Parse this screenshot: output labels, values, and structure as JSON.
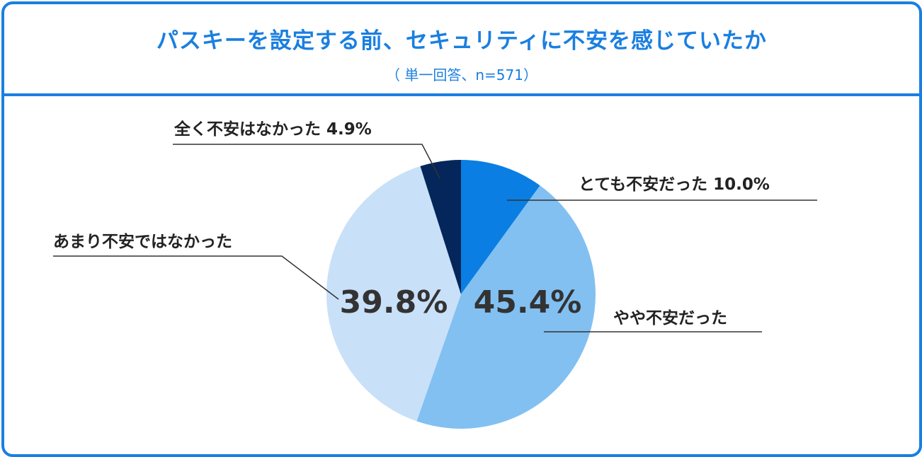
{
  "chart_data": {
    "type": "pie",
    "title": "パスキーを設定する前、セキュリティに不安を感じていたか",
    "subtitle": "（ 単一回答、n=571）",
    "slices": [
      {
        "label": "とても不安だった",
        "value": 10.0,
        "display": "とても不安だった 10.0%",
        "color": "#0a7ee2"
      },
      {
        "label": "やや不安だった",
        "value": 45.4,
        "display": "やや不安だった",
        "value_text": "45.4%",
        "color": "#82c0f2"
      },
      {
        "label": "あまり不安ではなかった",
        "value": 39.8,
        "display": "あまり不安ではなかった",
        "value_text": "39.8%",
        "color": "#c9e0f9"
      },
      {
        "label": "全く不安はなかった",
        "value": 4.9,
        "display": "全く不安はなかった 4.9%",
        "color": "#04265a"
      }
    ],
    "start": "top",
    "direction": "clockwise"
  }
}
